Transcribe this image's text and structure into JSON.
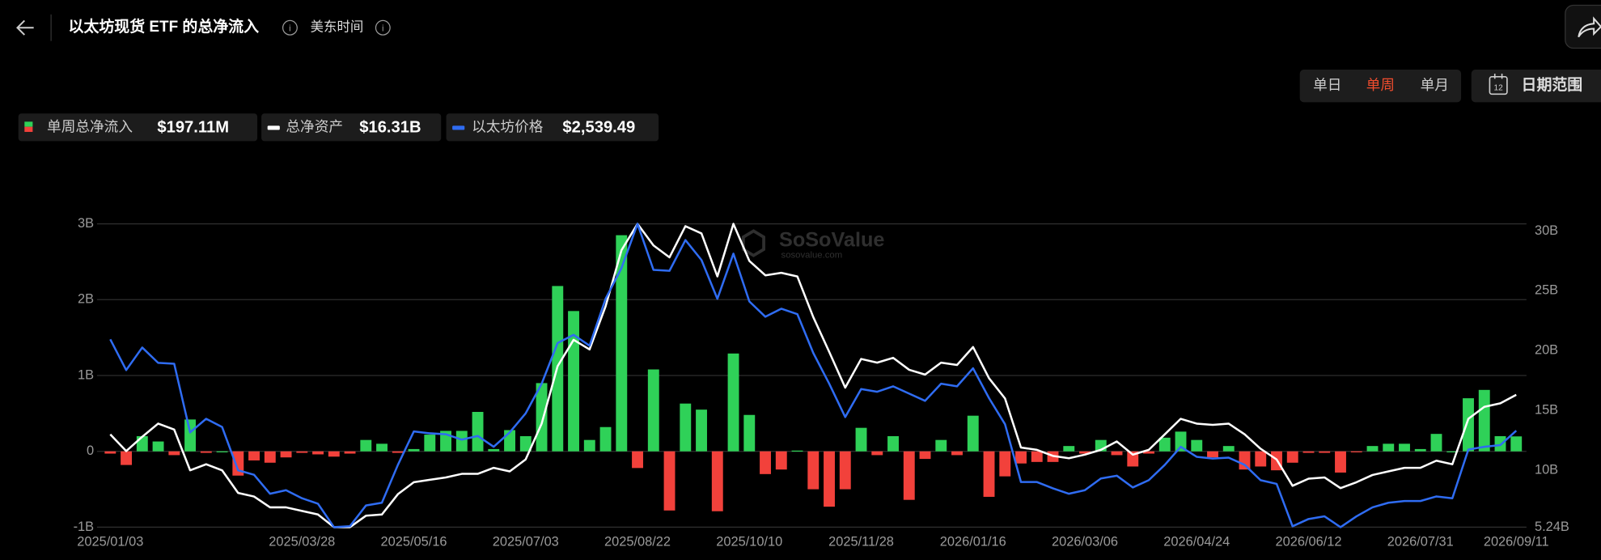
{
  "header": {
    "title": "以太坊现货 ETF 的总净流入",
    "timezone": "美东时间"
  },
  "tabs": [
    "单日",
    "单周",
    "单月"
  ],
  "active_tab": 1,
  "active_color": "#f04d2e",
  "date_range": {
    "icon": "12",
    "label": "日期范围"
  },
  "watermark": [
    "SoSoValue",
    "sosovalue.com"
  ],
  "chart_data": {
    "type": "bar",
    "categories": [
      "2025/01/03",
      null,
      null,
      null,
      null,
      null,
      null,
      null,
      null,
      null,
      null,
      null,
      "2025/03/28",
      null,
      null,
      null,
      null,
      null,
      null,
      "2025/05/16",
      null,
      null,
      null,
      null,
      null,
      null,
      "2025/07/03",
      null,
      null,
      null,
      null,
      null,
      null,
      "2025/08/22",
      null,
      null,
      null,
      null,
      null,
      null,
      "2025/10/10",
      null,
      null,
      null,
      null,
      null,
      null,
      "2025/11/28",
      null,
      null,
      null,
      null,
      null,
      null,
      "2026/01/16",
      null,
      null,
      null,
      null,
      null,
      null,
      "2026/03/06",
      null,
      null,
      null,
      null,
      null,
      null,
      "2026/04/24",
      null,
      null,
      null,
      null,
      null,
      null,
      "2026/06/12",
      null,
      null,
      null,
      null,
      null,
      null,
      "2026/07/31",
      null,
      null,
      null,
      null,
      null,
      "2026/09/11"
    ],
    "series": [
      {
        "name": "单周总净流入",
        "current": "$197.11M",
        "type": "bar",
        "color": "#2fd158",
        "negative_color": "#f2413b",
        "values": [
          -0.03,
          -0.18,
          0.2,
          0.13,
          -0.05,
          0.42,
          -0.02,
          0,
          -0.32,
          -0.12,
          -0.15,
          -0.08,
          -0.02,
          -0.04,
          -0.07,
          -0.03,
          0.15,
          0.1,
          -0.02,
          0.03,
          0.22,
          0.27,
          0.27,
          0.52,
          0.03,
          0.28,
          0.2,
          0.9,
          2.18,
          1.85,
          0.15,
          0.32,
          2.85,
          -0.22,
          1.08,
          -0.78,
          0.63,
          0.55,
          -0.79,
          1.29,
          0.48,
          -0.3,
          -0.24,
          0.01,
          -0.5,
          -0.73,
          -0.5,
          0.31,
          -0.05,
          0.2,
          -0.64,
          -0.1,
          0.15,
          -0.05,
          0.47,
          -0.6,
          -0.33,
          -0.16,
          -0.14,
          -0.14,
          0.07,
          -0.03,
          0.15,
          -0.05,
          -0.2,
          -0.03,
          0.18,
          0.26,
          0.15,
          -0.08,
          0.07,
          -0.24,
          -0.2,
          -0.25,
          -0.15,
          -0.02,
          -0.02,
          -0.28,
          -0.01,
          0.07,
          0.1,
          0.1,
          0.03,
          0.23,
          0,
          0.7,
          0.81,
          0.2,
          0.197
        ]
      },
      {
        "name": "总净资产",
        "current": "$16.31B",
        "type": "line",
        "axis": "y2",
        "color": "#ffffff",
        "values": [
          13.0,
          11.6,
          12.8,
          13.9,
          13.4,
          10.0,
          10.5,
          10.0,
          8.1,
          7.8,
          6.9,
          6.9,
          6.6,
          6.3,
          5.24,
          5.24,
          6.2,
          6.3,
          8.0,
          9.0,
          9.2,
          9.4,
          9.7,
          9.7,
          10.2,
          9.9,
          10.9,
          13.9,
          18.7,
          20.9,
          20.1,
          23.7,
          28.4,
          30.6,
          28.8,
          27.8,
          30.4,
          29.8,
          26.2,
          30.6,
          27.5,
          26.3,
          26.5,
          26.2,
          22.8,
          19.9,
          16.9,
          19.3,
          19.0,
          19.4,
          18.4,
          18.0,
          19.0,
          18.8,
          20.3,
          17.7,
          16.0,
          11.9,
          11.7,
          11.2,
          11.0,
          11.3,
          11.7,
          12.4,
          11.3,
          11.7,
          13.0,
          14.3,
          13.9,
          13.8,
          13.9,
          13.0,
          11.8,
          10.9,
          8.7,
          9.3,
          9.4,
          8.5,
          9.0,
          9.6,
          9.9,
          10.2,
          10.2,
          10.8,
          10.5,
          14.3,
          15.3,
          15.6,
          16.31
        ]
      },
      {
        "name": "以太坊价格",
        "current": "$2,539.49",
        "type": "line",
        "axis": "y3",
        "color": "#2f6cf2",
        "values": [
          3550,
          3210,
          3460,
          3290,
          3280,
          2520,
          2670,
          2580,
          2100,
          2050,
          1840,
          1880,
          1790,
          1730,
          1470,
          1480,
          1710,
          1740,
          2160,
          2530,
          2510,
          2500,
          2440,
          2480,
          2360,
          2520,
          2730,
          3060,
          3510,
          3600,
          3480,
          4000,
          4340,
          4830,
          4320,
          4310,
          4650,
          4430,
          4000,
          4500,
          3970,
          3800,
          3890,
          3830,
          3400,
          3060,
          2690,
          3000,
          2970,
          3030,
          2950,
          2870,
          3060,
          3030,
          3230,
          2900,
          2610,
          1970,
          1970,
          1900,
          1840,
          1880,
          2010,
          2040,
          1910,
          1990,
          2160,
          2360,
          2250,
          2230,
          2240,
          2160,
          1990,
          1950,
          1480,
          1560,
          1590,
          1470,
          1590,
          1690,
          1740,
          1760,
          1760,
          1810,
          1790,
          2330,
          2360,
          2380,
          2539.49
        ]
      }
    ],
    "ylim": [
      -1,
      3
    ],
    "yticks": [
      {
        "value": -1,
        "label": "-1B"
      },
      0,
      {
        "value": 1,
        "label": "1B"
      },
      {
        "value": 2,
        "label": "2B"
      },
      {
        "value": 3,
        "label": "3B"
      }
    ],
    "y2lim": [
      5.24,
      30.6
    ],
    "y2ticks": [
      {
        "value": 5.24,
        "label": "5.24B"
      },
      {
        "value": 10,
        "label": "10B"
      },
      {
        "value": 15,
        "label": "15B"
      },
      {
        "value": 20,
        "label": "20B"
      },
      {
        "value": 25,
        "label": "25B"
      },
      {
        "value": 30,
        "label": "30B"
      }
    ],
    "y3lim": [
      1470,
      4830
    ],
    "grid": true
  }
}
